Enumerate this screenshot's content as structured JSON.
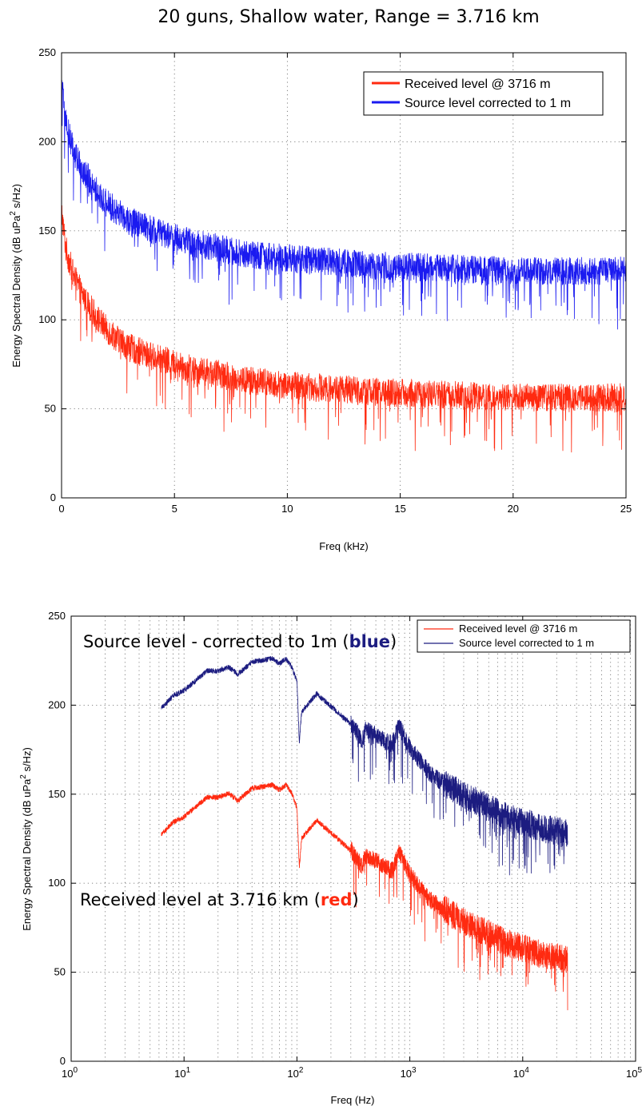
{
  "figure_title": "20 guns, Shallow water, Range = 3.716 km",
  "colors": {
    "top_received": "#ff2a10",
    "top_source": "#1a1af0",
    "bottom_received": "#ff2a10",
    "bottom_source": "#1c1c80",
    "annot_blue": "#1c1c80",
    "annot_red": "#ff2a10"
  },
  "chart_data": [
    {
      "type": "line",
      "title": "20 guns, Shallow water, Range = 3.716 km",
      "xlabel": "Freq (kHz)",
      "ylabel": "Energy Spectral Density (dB uPa",
      "ylabel_sup": "2",
      "ylabel_end": " s/Hz)",
      "xscale": "linear",
      "xlim": [
        0,
        25
      ],
      "ylim": [
        0,
        250
      ],
      "x_ticks": [
        0,
        5,
        10,
        15,
        20,
        25
      ],
      "x_tick_labels": [
        "0",
        "5",
        "10",
        "15",
        "20",
        "25"
      ],
      "y_ticks": [
        0,
        50,
        100,
        150,
        200,
        250
      ],
      "y_tick_labels": [
        "0",
        "50",
        "100",
        "150",
        "200",
        "250"
      ],
      "grid": true,
      "legend_position": "top-right",
      "series": [
        {
          "name": "Received level @ 3716 m",
          "color_key": "top_received",
          "x": [
            0.02,
            0.1,
            0.2,
            0.4,
            0.6,
            1,
            1.5,
            2,
            3,
            4,
            5,
            6,
            7,
            8,
            10,
            12,
            14,
            16,
            18,
            20,
            22,
            25
          ],
          "y": [
            157,
            147,
            137,
            128,
            120,
            110,
            100,
            92,
            82,
            77,
            73,
            69,
            67,
            64,
            61,
            59,
            57,
            56,
            55,
            54,
            54,
            54
          ]
        },
        {
          "name": "Source level corrected to 1 m",
          "color_key": "top_source",
          "x": [
            0.02,
            0.1,
            0.2,
            0.4,
            0.6,
            1,
            1.5,
            2,
            3,
            4,
            5,
            6,
            7,
            8,
            10,
            12,
            14,
            16,
            18,
            20,
            22,
            25
          ],
          "y": [
            228,
            218,
            208,
            198,
            190,
            181,
            171,
            163,
            153,
            148,
            144,
            140,
            138,
            135,
            132,
            130,
            128,
            127,
            126,
            125,
            125,
            125
          ]
        }
      ]
    },
    {
      "type": "line",
      "xlabel": "Freq (Hz)",
      "ylabel": "Energy Spectral Density (dB uPa",
      "ylabel_sup": "2",
      "ylabel_end": " s/Hz)",
      "xscale": "log",
      "xlim": [
        1,
        100000
      ],
      "ylim": [
        0,
        250
      ],
      "x_tick_exponents": [
        "0",
        "1",
        "2",
        "3",
        "4",
        "5"
      ],
      "x_tick_base": "10",
      "y_ticks": [
        0,
        50,
        100,
        150,
        200,
        250
      ],
      "y_tick_labels": [
        "0",
        "50",
        "100",
        "150",
        "200",
        "250"
      ],
      "grid": true,
      "legend_position": "top-right",
      "series": [
        {
          "name": "Received level @ 3716 m",
          "color_key": "bottom_received",
          "x": [
            6.3,
            8,
            10,
            13,
            16,
            20,
            25,
            30,
            40,
            50,
            60,
            70,
            80,
            90,
            100,
            105,
            110,
            150,
            200,
            300,
            380,
            400,
            500,
            600,
            700,
            800,
            1000,
            1500,
            2000,
            3000,
            5000,
            7000,
            10000,
            15000,
            20000,
            25000
          ],
          "y": [
            127,
            134,
            137,
            143,
            148,
            148,
            150,
            146,
            153,
            154,
            155,
            152,
            155,
            150,
            142,
            108,
            125,
            135,
            128,
            118,
            108,
            114,
            112,
            108,
            106,
            117,
            104,
            90,
            84,
            77,
            70,
            65,
            62,
            58,
            57,
            55
          ]
        },
        {
          "name": "Source level corrected to 1 m",
          "color_key": "bottom_source",
          "x": [
            6.3,
            8,
            10,
            13,
            16,
            20,
            25,
            30,
            40,
            50,
            60,
            70,
            80,
            90,
            100,
            105,
            110,
            150,
            200,
            300,
            380,
            400,
            500,
            600,
            700,
            800,
            1000,
            1500,
            2000,
            3000,
            5000,
            7000,
            10000,
            15000,
            20000,
            25000
          ],
          "y": [
            198,
            205,
            208,
            214,
            219,
            219,
            221,
            217,
            224,
            225,
            226,
            223,
            226,
            221,
            213,
            179,
            196,
            206,
            199,
            189,
            179,
            185,
            183,
            179,
            177,
            188,
            175,
            161,
            155,
            148,
            141,
            136,
            133,
            129,
            128,
            126
          ]
        }
      ],
      "annotations": [
        {
          "prefix": "Source level - corrected to 1m (",
          "highlight": "blue",
          "suffix": ")",
          "color_key": "annot_blue"
        },
        {
          "prefix": "Received level at 3.716 km (",
          "highlight": "red",
          "suffix": ")",
          "color_key": "annot_red"
        }
      ]
    }
  ]
}
